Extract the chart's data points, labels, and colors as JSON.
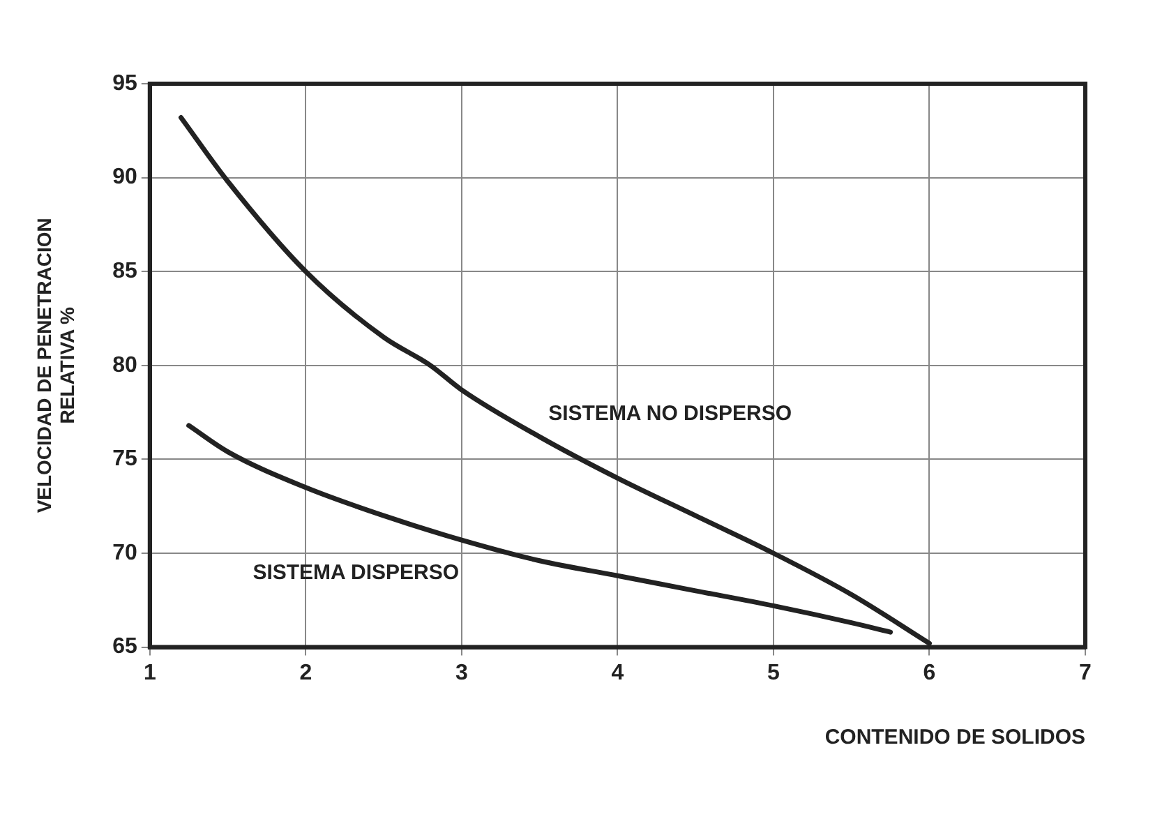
{
  "chart_data": {
    "type": "line",
    "xlabel": "CONTENIDO DE SOLIDOS",
    "ylabel": "VELOCIDAD DE PENETRACION\nRELATIVA %",
    "xlim": [
      1,
      7
    ],
    "xticks": [
      1,
      2,
      3,
      4,
      5,
      6,
      7
    ],
    "ylim": [
      65,
      95
    ],
    "yticks": [
      65,
      70,
      75,
      80,
      85,
      90,
      95
    ],
    "grid": true,
    "legend": false,
    "marker": "none",
    "line_style": "solid",
    "series": [
      {
        "name": "SISTEMA NO DISPERSO",
        "color": "#222222",
        "x": [
          1.2,
          1.5,
          2,
          2.5,
          2.8,
          3,
          3.5,
          4,
          4.5,
          5,
          5.5,
          6
        ],
        "values": [
          93.2,
          89.8,
          85,
          81.5,
          80,
          78.7,
          76.2,
          74,
          72,
          70,
          67.8,
          65.2
        ]
      },
      {
        "name": "SISTEMA DISPERSO",
        "color": "#222222",
        "x": [
          1.25,
          1.5,
          2,
          2.5,
          3,
          3.5,
          4,
          4.5,
          5,
          5.5,
          5.75
        ],
        "values": [
          76.8,
          75.4,
          73.5,
          72,
          70.7,
          69.6,
          68.8,
          68,
          67.2,
          66.3,
          65.8
        ]
      }
    ]
  }
}
